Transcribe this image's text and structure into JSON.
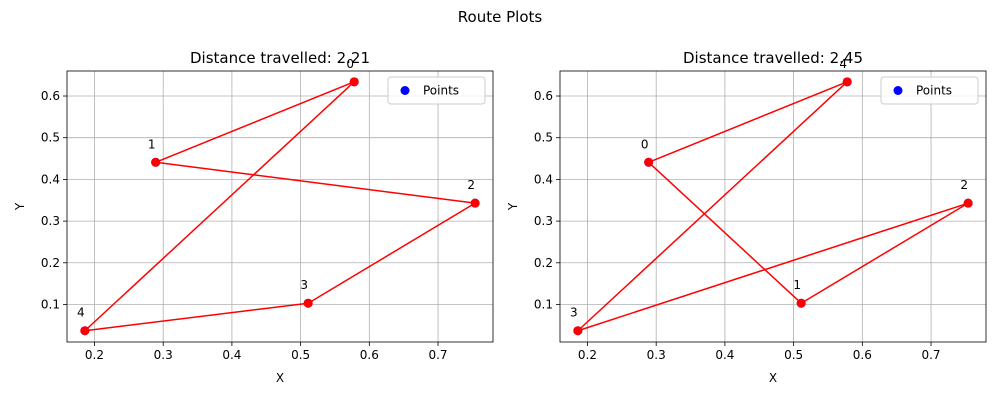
{
  "suptitle": "Route Plots",
  "chart_data": [
    {
      "type": "line",
      "title": "Distance travelled: 2.21",
      "xlabel": "X",
      "ylabel": "Y",
      "xlim": [
        0.16,
        0.78
      ],
      "ylim": [
        0.01,
        0.66
      ],
      "xticks": [
        0.2,
        0.3,
        0.4,
        0.5,
        0.6,
        0.7
      ],
      "yticks": [
        0.1,
        0.2,
        0.3,
        0.4,
        0.5,
        0.6
      ],
      "grid": true,
      "legend": {
        "position": "top-right",
        "entries": [
          "Points"
        ]
      },
      "colors": {
        "points": "#0000ff",
        "route": "#ff0000"
      },
      "points": [
        {
          "label": "0",
          "x": 0.578,
          "y": 0.634
        },
        {
          "label": "1",
          "x": 0.289,
          "y": 0.441
        },
        {
          "label": "2",
          "x": 0.754,
          "y": 0.343
        },
        {
          "label": "3",
          "x": 0.511,
          "y": 0.103
        },
        {
          "label": "4",
          "x": 0.186,
          "y": 0.037
        }
      ],
      "route": [
        0,
        1,
        2,
        3,
        4,
        0
      ]
    },
    {
      "type": "line",
      "title": "Distance travelled: 2.45",
      "xlabel": "X",
      "ylabel": "Y",
      "xlim": [
        0.16,
        0.78
      ],
      "ylim": [
        0.01,
        0.66
      ],
      "xticks": [
        0.2,
        0.3,
        0.4,
        0.5,
        0.6,
        0.7
      ],
      "yticks": [
        0.1,
        0.2,
        0.3,
        0.4,
        0.5,
        0.6
      ],
      "grid": true,
      "legend": {
        "position": "top-right",
        "entries": [
          "Points"
        ]
      },
      "colors": {
        "points": "#0000ff",
        "route": "#ff0000"
      },
      "points": [
        {
          "label": "0",
          "x": 0.289,
          "y": 0.441
        },
        {
          "label": "1",
          "x": 0.511,
          "y": 0.103
        },
        {
          "label": "2",
          "x": 0.754,
          "y": 0.343
        },
        {
          "label": "3",
          "x": 0.186,
          "y": 0.037
        },
        {
          "label": "4",
          "x": 0.578,
          "y": 0.634
        }
      ],
      "route": [
        0,
        1,
        2,
        3,
        4,
        0
      ]
    }
  ]
}
